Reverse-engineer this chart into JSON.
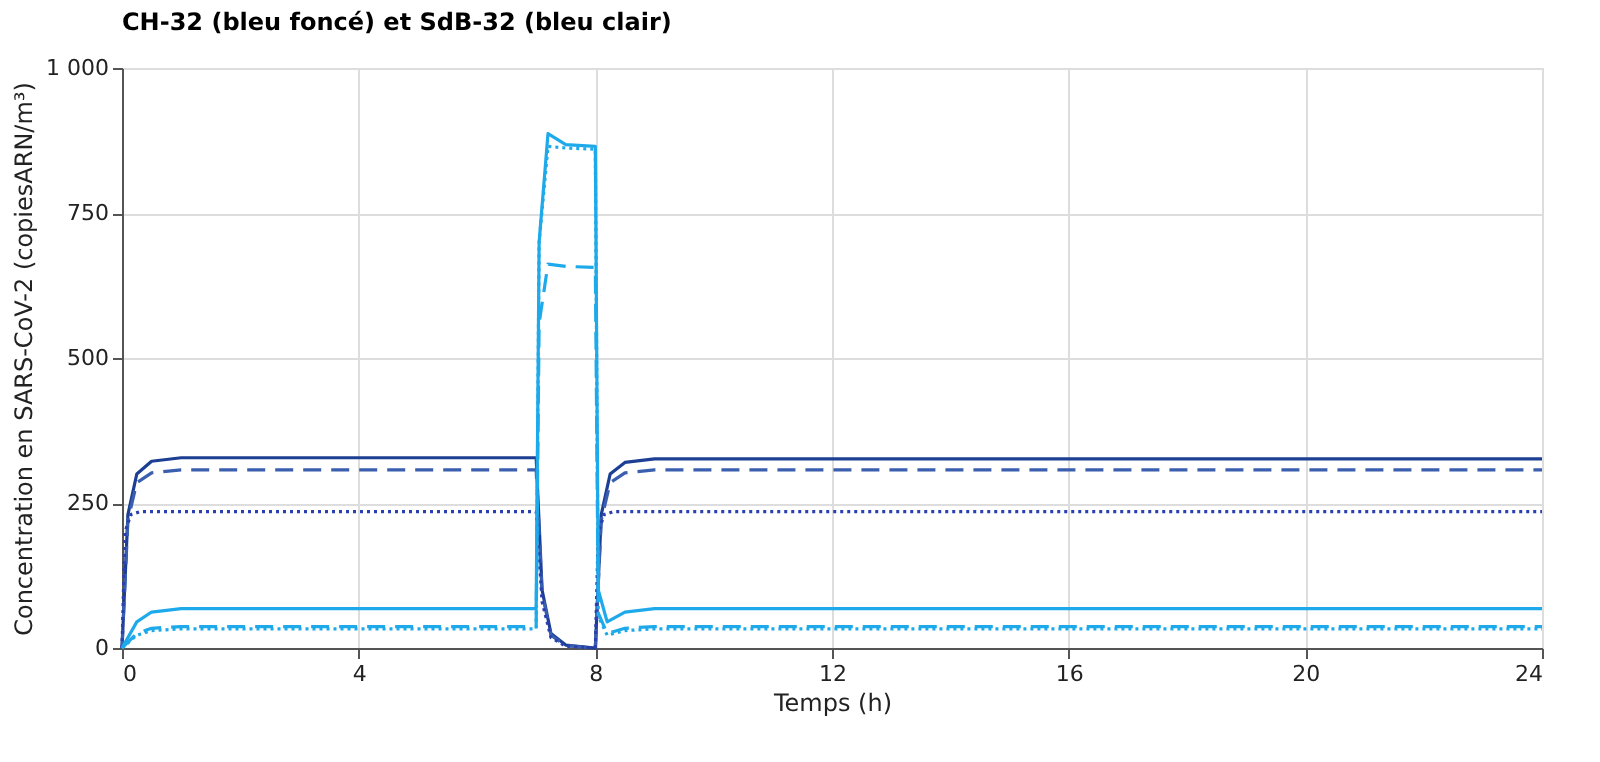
{
  "chart_data": {
    "type": "line",
    "title": "CH-32 (bleu foncé) et SdB-32 (bleu clair)",
    "xlabel": "Temps (h)",
    "ylabel": "Concentration en SARS-CoV-2 (copiesARN/m³)",
    "xlim": [
      0,
      24
    ],
    "xticks": [
      0,
      4,
      8,
      12,
      16,
      20,
      24
    ],
    "ylim": [
      0,
      1000
    ],
    "yticks": [
      0,
      250,
      500,
      750,
      {
        "value": 1000,
        "label": "1 000"
      }
    ],
    "grid": true,
    "marker": "none",
    "series": [
      {
        "color": "#1c3f94",
        "line_style": "solid",
        "x": [
          0,
          0.1,
          0.25,
          0.5,
          1,
          7,
          7.1,
          7.25,
          7.5,
          8,
          8.1,
          8.25,
          8.5,
          9,
          24
        ],
        "values": [
          0,
          230,
          300,
          322,
          328,
          328,
          100,
          25,
          5,
          0,
          230,
          300,
          320,
          326,
          326
        ]
      },
      {
        "color": "#3a5fae",
        "line_style": "dashed",
        "x": [
          0,
          0.1,
          0.25,
          0.5,
          1,
          7,
          7.1,
          7.25,
          7.5,
          8,
          8.1,
          8.25,
          8.5,
          9,
          24
        ],
        "values": [
          0,
          220,
          285,
          302,
          307,
          307,
          95,
          22,
          4,
          0,
          220,
          285,
          302,
          307,
          307
        ]
      },
      {
        "color": "#2a3fb0",
        "line_style": "dotted",
        "x": [
          0,
          0.05,
          0.15,
          0.3,
          7,
          7.1,
          7.25,
          7.5,
          8,
          8.05,
          8.15,
          8.3,
          24
        ],
        "values": [
          0,
          200,
          230,
          235,
          235,
          80,
          18,
          3,
          0,
          200,
          230,
          235,
          235
        ]
      },
      {
        "color": "#1eaaea",
        "line_style": "solid",
        "x": [
          0,
          0.25,
          0.5,
          1,
          7,
          7.05,
          7.2,
          7.5,
          8,
          8.05,
          8.2,
          8.5,
          9,
          24
        ],
        "values": [
          0,
          45,
          62,
          68,
          68,
          700,
          887,
          868,
          865,
          100,
          45,
          62,
          68,
          68
        ]
      },
      {
        "color": "#1eaaea",
        "line_style": "dashed",
        "x": [
          0,
          0.25,
          0.5,
          1,
          7,
          7.05,
          7.2,
          7.5,
          8,
          8.05,
          8.2,
          8.5,
          9,
          24
        ],
        "values": [
          0,
          25,
          34,
          37,
          37,
          560,
          662,
          658,
          656,
          60,
          25,
          34,
          37,
          37
        ]
      },
      {
        "color": "#1eaaea",
        "line_style": "dotted",
        "x": [
          0,
          0.25,
          0.5,
          1,
          7,
          7.05,
          7.2,
          7.5,
          8,
          8.05,
          8.2,
          8.5,
          9,
          24
        ],
        "values": [
          0,
          22,
          30,
          33,
          33,
          700,
          865,
          862,
          860,
          55,
          22,
          30,
          33,
          33
        ]
      }
    ]
  }
}
